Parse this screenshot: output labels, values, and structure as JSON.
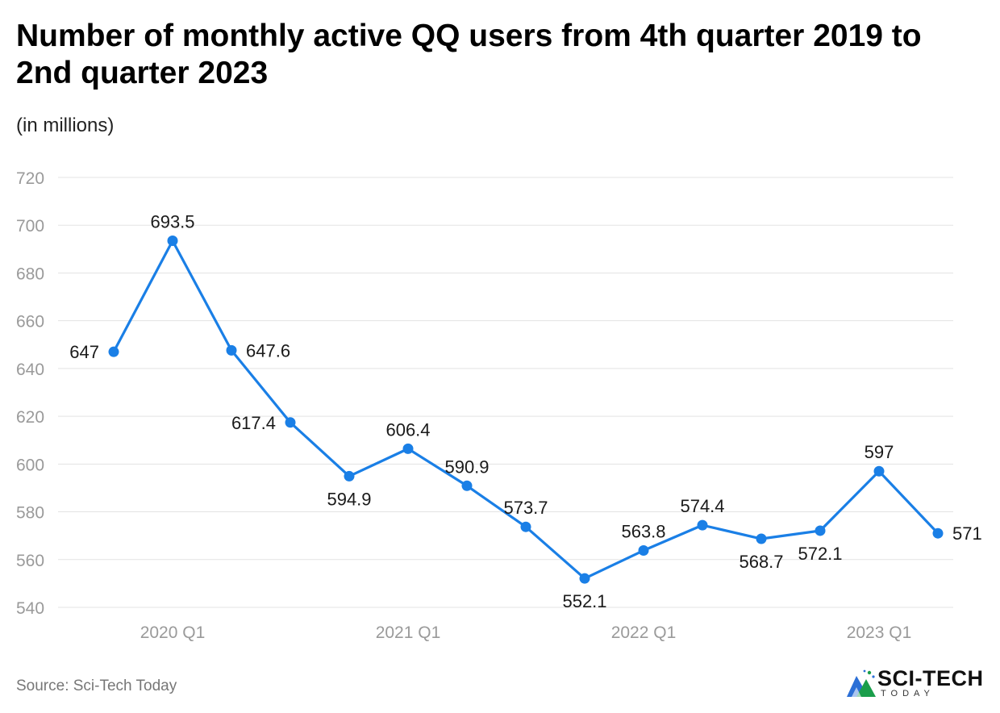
{
  "title": "Number of monthly active QQ users from 4th quarter 2019 to 2nd quarter 2023",
  "subtitle": "(in millions)",
  "source": "Source: Sci-Tech Today",
  "logo": {
    "name": "SCI-TECH",
    "sub": "TODAY",
    "icon": "logo-icon"
  },
  "colors": {
    "line": "#1a7fe6",
    "grid": "#e3e3e3",
    "axis_text": "#9a9a9a",
    "label_text": "#1a1a1a"
  },
  "chart_data": {
    "type": "line",
    "title": "Number of monthly active QQ users from 4th quarter 2019 to 2nd quarter 2023",
    "ylabel": "(in millions)",
    "xlabel": "",
    "ylim": [
      540,
      720
    ],
    "yticks": [
      540,
      560,
      580,
      600,
      620,
      640,
      660,
      680,
      700,
      720
    ],
    "grid": true,
    "x": [
      "2019 Q4",
      "2020 Q1",
      "2020 Q2",
      "2020 Q3",
      "2020 Q4",
      "2021 Q1",
      "2021 Q2",
      "2021 Q3",
      "2021 Q4",
      "2022 Q1",
      "2022 Q2",
      "2022 Q3",
      "2022 Q4",
      "2023 Q1",
      "2023 Q2"
    ],
    "xtick_labels": [
      "2020 Q1",
      "2021 Q1",
      "2022 Q1",
      "2023 Q1"
    ],
    "xtick_indices": [
      1,
      5,
      9,
      13
    ],
    "series": [
      {
        "name": "Monthly active users",
        "values": [
          647,
          693.5,
          647.6,
          617.4,
          594.9,
          606.4,
          590.9,
          573.7,
          552.1,
          563.8,
          574.4,
          568.7,
          572.1,
          597,
          571
        ],
        "labels": [
          "647",
          "693.5",
          "647.6",
          "617.4",
          "594.9",
          "606.4",
          "590.9",
          "573.7",
          "552.1",
          "563.8",
          "574.4",
          "568.7",
          "572.1",
          "597",
          "571"
        ],
        "label_pos": [
          "left",
          "above",
          "right",
          "left",
          "below",
          "above",
          "above",
          "above",
          "below",
          "above",
          "above",
          "below",
          "below",
          "above",
          "right"
        ]
      }
    ]
  }
}
